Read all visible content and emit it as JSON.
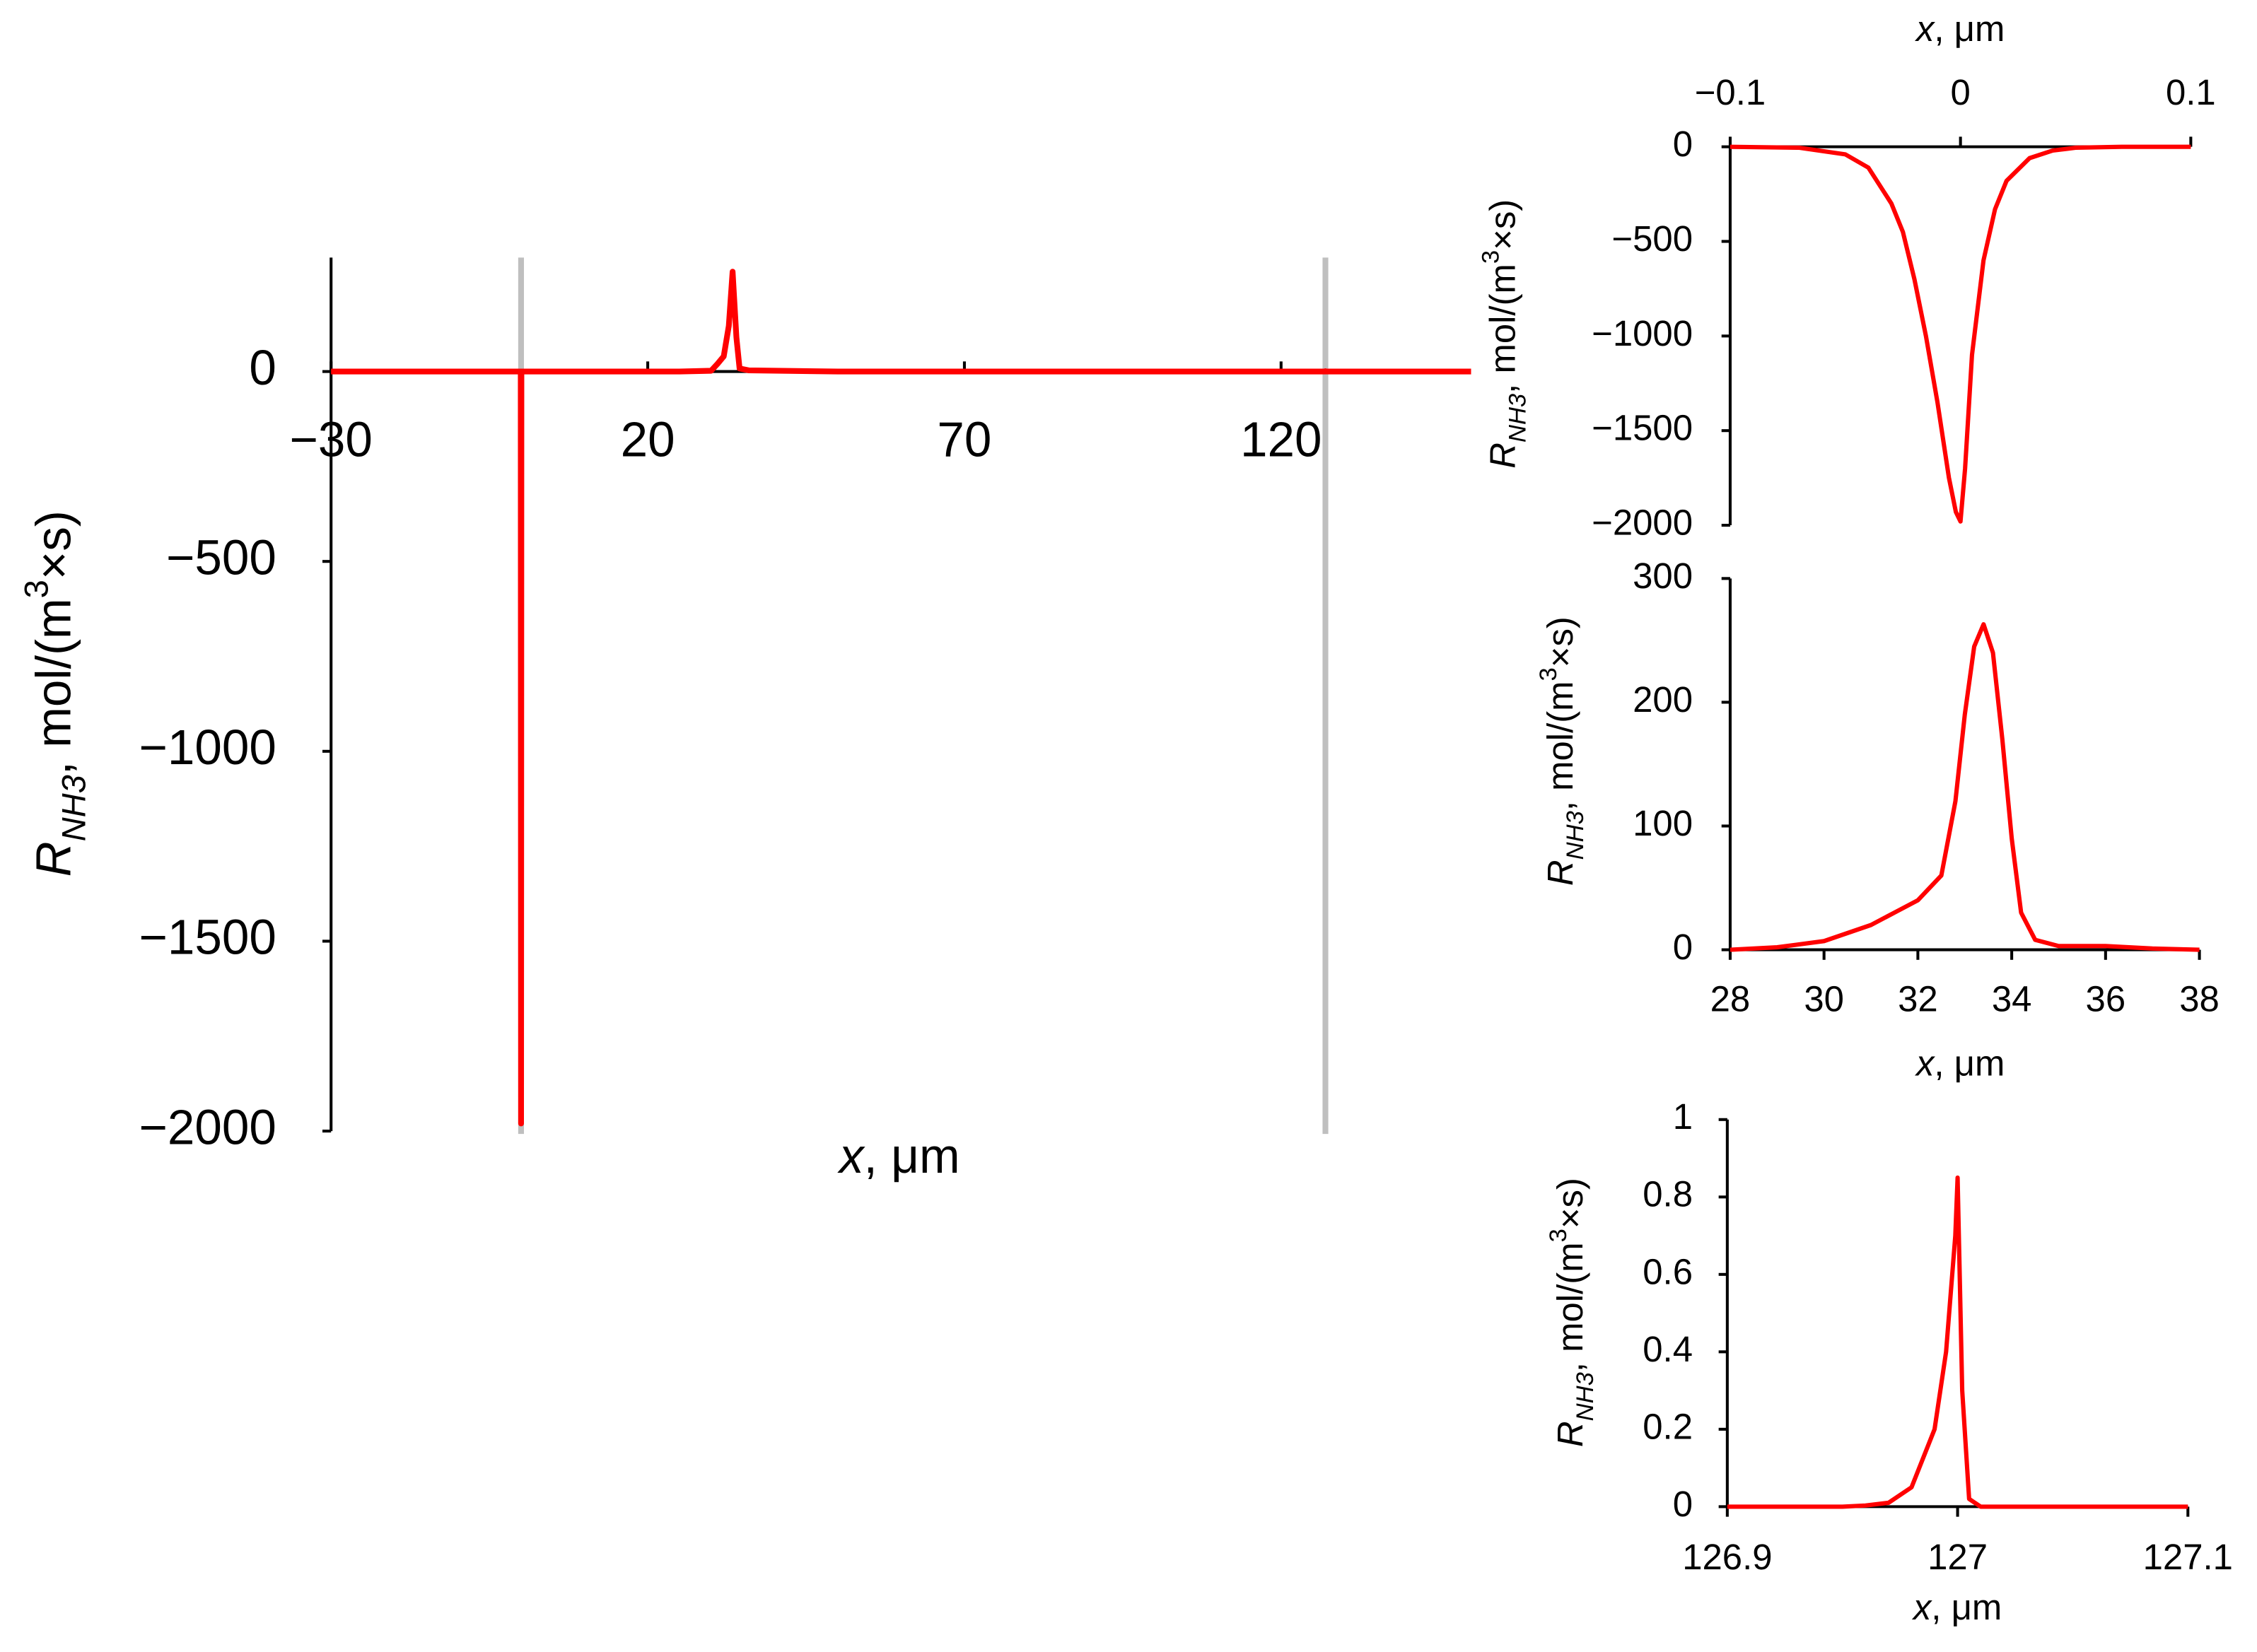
{
  "chart_data": [
    {
      "type": "line",
      "xlabel": [
        "x",
        ", μm"
      ],
      "ylabel": [
        "R",
        "NH3",
        ", mol/(m",
        "3",
        "×s)"
      ],
      "x": [
        -30,
        -10,
        -1,
        -0.05,
        0,
        0.05,
        1,
        10,
        25,
        30,
        31,
        32,
        32.8,
        33.4,
        34,
        34.5,
        36,
        50,
        100,
        126.9,
        127,
        127.1,
        150
      ],
      "values": [
        0,
        0,
        0,
        0,
        -1980,
        0,
        0,
        0,
        0,
        2,
        20,
        40,
        120,
        263,
        90,
        8,
        3,
        0,
        0,
        0,
        0.85,
        0,
        0
      ],
      "color": "#ff0000",
      "xlim": [
        -30,
        150
      ],
      "ylim": [
        -2000,
        300
      ],
      "xticks": [
        {
          "value": -30,
          "label": "−30"
        },
        20,
        70,
        120
      ],
      "yticks": [
        {
          "value": -2000,
          "label": "−2000"
        },
        {
          "value": -1500,
          "label": "−1500"
        },
        {
          "value": -1000,
          "label": "−1000"
        },
        {
          "value": -500,
          "label": "−500"
        },
        0
      ],
      "reference_lines": [
        {
          "x": 0
        },
        {
          "x": 127
        }
      ],
      "reference_color": "#bfbfbf"
    },
    {
      "type": "line",
      "xlabel": [
        "x",
        ", μm"
      ],
      "ylabel": [
        "R",
        "NH3",
        ", mol/(m",
        "3",
        "×s)"
      ],
      "x": [
        -0.1,
        -0.07,
        -0.05,
        -0.04,
        -0.03,
        -0.025,
        -0.02,
        -0.015,
        -0.01,
        -0.005,
        -0.002,
        0,
        0.002,
        0.005,
        0.01,
        0.015,
        0.02,
        0.03,
        0.04,
        0.05,
        0.07,
        0.1
      ],
      "values": [
        0,
        -5,
        -40,
        -110,
        -300,
        -450,
        -700,
        -1000,
        -1350,
        -1750,
        -1930,
        -1980,
        -1700,
        -1100,
        -600,
        -330,
        -180,
        -60,
        -20,
        -5,
        0,
        0
      ],
      "color": "#ff0000",
      "xlim": [
        -0.1,
        0.1
      ],
      "ylim": [
        -2000,
        0
      ],
      "xticks": [
        {
          "value": -0.1,
          "label": "−0.1"
        },
        0,
        0.1
      ],
      "yticks": [
        {
          "value": -2000,
          "label": "−2000"
        },
        {
          "value": -1500,
          "label": "−1500"
        },
        {
          "value": -1000,
          "label": "−1000"
        },
        {
          "value": -500,
          "label": "−500"
        },
        0
      ]
    },
    {
      "type": "line",
      "xlabel": [
        "x",
        ", μm"
      ],
      "ylabel": [
        "R",
        "NH3",
        ", mol/(m",
        "3",
        "×s)"
      ],
      "x": [
        28,
        29,
        30,
        31,
        31.5,
        32,
        32.5,
        32.8,
        33,
        33.2,
        33.4,
        33.6,
        33.8,
        34,
        34.2,
        34.5,
        35,
        36,
        37,
        38
      ],
      "values": [
        0,
        2,
        7,
        20,
        30,
        40,
        60,
        120,
        190,
        245,
        263,
        240,
        170,
        90,
        30,
        8,
        3,
        3,
        1,
        0
      ],
      "color": "#ff0000",
      "xlim": [
        28,
        38
      ],
      "ylim": [
        0,
        300
      ],
      "xticks": [
        28,
        30,
        32,
        34,
        36,
        38
      ],
      "yticks": [
        0,
        100,
        200,
        300
      ]
    },
    {
      "type": "line",
      "xlabel": [
        "x",
        ", μm"
      ],
      "ylabel": [
        "R",
        "NH3",
        ", mol/(m",
        "3",
        "×s)"
      ],
      "x": [
        126.9,
        126.95,
        126.96,
        126.97,
        126.98,
        126.99,
        126.995,
        126.999,
        127,
        127.002,
        127.005,
        127.01,
        127.1
      ],
      "values": [
        0,
        0,
        0.003,
        0.01,
        0.05,
        0.2,
        0.4,
        0.7,
        0.85,
        0.3,
        0.02,
        0,
        0
      ],
      "color": "#ff0000",
      "xlim": [
        126.9,
        127.1
      ],
      "ylim": [
        0,
        1
      ],
      "xticks": [
        126.9,
        127,
        127.1
      ],
      "yticks": [
        0,
        0.2,
        0.4,
        0.6,
        0.8,
        1
      ]
    }
  ]
}
